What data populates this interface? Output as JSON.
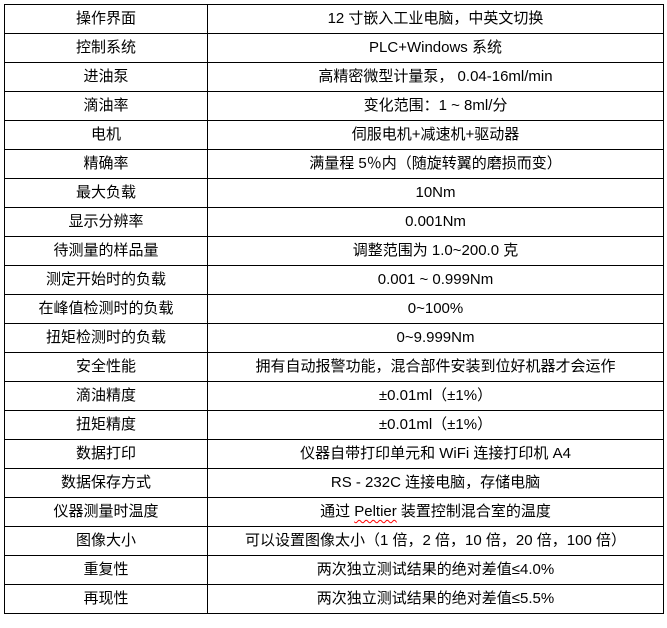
{
  "colors": {
    "background": "#ffffff",
    "border": "#000000",
    "text": "#000000",
    "spellcheck_underline": "#ff0000"
  },
  "table": {
    "rows": [
      {
        "label": "操作界面",
        "value": "12 寸嵌入工业电脑，中英文切换"
      },
      {
        "label": "控制系统",
        "value": "PLC+Windows 系统"
      },
      {
        "label": "进油泵",
        "value": "高精密微型计量泵， 0.04-16ml/min"
      },
      {
        "label": "滴油率",
        "value": "变化范围：1 ~ 8ml/分"
      },
      {
        "label": "电机",
        "value": "伺服电机+减速机+驱动器"
      },
      {
        "label": "精确率",
        "value": "满量程 5％内（随旋转翼的磨损而变）"
      },
      {
        "label": "最大负载",
        "value": "10Nm"
      },
      {
        "label": "显示分辨率",
        "value": "0.001Nm"
      },
      {
        "label": "待测量的样品量",
        "value": "调整范围为 1.0~200.0 克"
      },
      {
        "label": "测定开始时的负载",
        "value": "0.001 ~ 0.999Nm"
      },
      {
        "label": "在峰值检测时的负载",
        "value": "0~100%"
      },
      {
        "label": "扭矩检测时的负载",
        "value": "0~9.999Nm"
      },
      {
        "label": "安全性能",
        "value": "拥有自动报警功能，混合部件安装到位好机器才会运作"
      },
      {
        "label": "滴油精度",
        "value": "±0.01ml（±1%）"
      },
      {
        "label": "扭矩精度",
        "value": "±0.01ml（±1%）"
      },
      {
        "label": "数据打印",
        "value": "仪器自带打印单元和 WiFi 连接打印机 A4"
      },
      {
        "label": "数据保存方式",
        "value": "RS - 232C 连接电脑，存储电脑"
      },
      {
        "label": "仪器测量时温度",
        "value_parts": {
          "prefix": "通过 ",
          "flagged": "Peltier",
          "suffix": " 装置控制混合室的温度"
        }
      },
      {
        "label": "图像大小",
        "value": "可以设置图像太小（1 倍，2 倍，10 倍，20 倍，100 倍）"
      },
      {
        "label": "重复性",
        "value": "两次独立测试结果的绝对差值≤4.0%"
      },
      {
        "label": "再现性",
        "value": "两次独立测试结果的绝对差值≤5.5%"
      }
    ]
  }
}
